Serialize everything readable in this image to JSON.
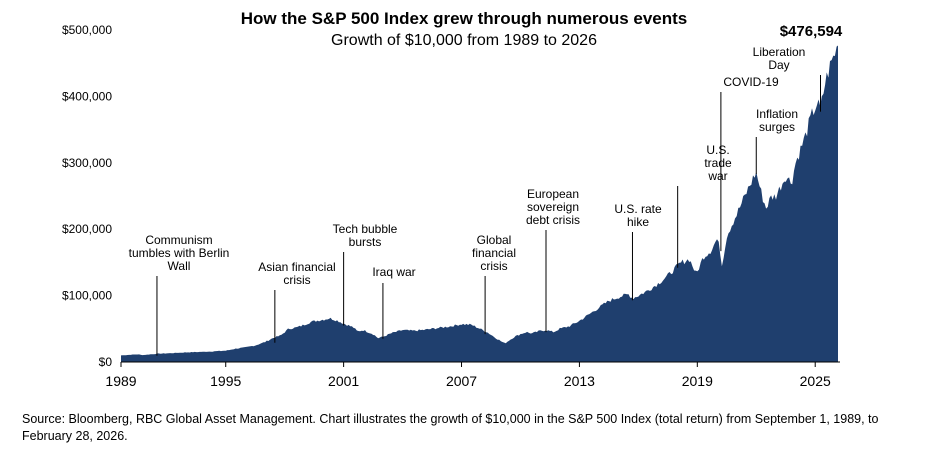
{
  "chart_data": {
    "type": "area",
    "title": "How the S&P 500 Index grew through numerous events",
    "subtitle": "Growth of $10,000 from 1989 to 2026",
    "xlabel": "",
    "ylabel": "",
    "xlim": [
      1989.67,
      2026.16
    ],
    "ylim": [
      0,
      500000
    ],
    "grid": false,
    "legend": "none",
    "color": "#1f3f6e",
    "y_ticks": [
      0,
      100000,
      200000,
      300000,
      400000,
      500000
    ],
    "y_tick_labels": [
      "$0",
      "$100,000",
      "$200,000",
      "$300,000",
      "$400,000",
      "$500,000"
    ],
    "x_ticks": [
      1989,
      1995,
      2001,
      2007,
      2013,
      2019,
      2025
    ],
    "x_tick_labels": [
      "1989",
      "1995",
      "2001",
      "2007",
      "2013",
      "2019",
      "2025"
    ],
    "final_value_label": "$476,594",
    "series": [
      {
        "x": [
          1989.67,
          1990.5,
          1990.8,
          1991.5,
          1992.0,
          1993.0,
          1994.0,
          1995.0,
          1995.5,
          1996.0,
          1996.5,
          1997.0,
          1997.4,
          1997.8,
          1998.2,
          1998.6,
          1998.9,
          1999.3,
          1999.6,
          2000.0,
          2000.3,
          2000.7,
          2001.0,
          2001.5,
          2001.7,
          2002.0,
          2002.5,
          2002.75,
          2003.0,
          2003.5,
          2004.0,
          2004.5,
          2005.0,
          2005.5,
          2006.0,
          2006.5,
          2007.0,
          2007.5,
          2007.8,
          2008.3,
          2008.8,
          2009.2,
          2009.7,
          2010.0,
          2010.3,
          2010.6,
          2011.0,
          2011.3,
          2011.7,
          2012.0,
          2012.5,
          2013.0,
          2013.5,
          2014.0,
          2014.5,
          2015.0,
          2015.5,
          2015.7,
          2016.0,
          2016.5,
          2017.0,
          2017.5,
          2018.0,
          2018.2,
          2018.6,
          2018.95,
          2019.3,
          2019.7,
          2020.0,
          2020.15,
          2020.25,
          2020.5,
          2020.8,
          2021.0,
          2021.5,
          2021.99,
          2022.3,
          2022.5,
          2022.75,
          2023.0,
          2023.5,
          2023.8,
          2024.0,
          2024.5,
          2024.8,
          2025.1,
          2025.27,
          2025.5,
          2025.8,
          2026.0,
          2026.16
        ],
        "y": [
          10000,
          11500,
          10500,
          12500,
          13000,
          14500,
          15500,
          17000,
          20000,
          22000,
          25000,
          30000,
          36000,
          40000,
          50000,
          52000,
          55000,
          60000,
          62000,
          64000,
          66000,
          62000,
          58000,
          52000,
          46000,
          48000,
          42000,
          36000,
          38000,
          44000,
          48000,
          47000,
          48000,
          50000,
          52000,
          54000,
          57000,
          56000,
          52000,
          45000,
          35000,
          28000,
          38000,
          42000,
          45000,
          43000,
          47000,
          48000,
          45000,
          50000,
          54000,
          62000,
          72000,
          82000,
          92000,
          98000,
          102000,
          96000,
          100000,
          108000,
          118000,
          130000,
          145000,
          150000,
          155000,
          132000,
          158000,
          168000,
          185000,
          170000,
          145000,
          190000,
          210000,
          222000,
          255000,
          286000,
          250000,
          232000,
          248000,
          250000,
          280000,
          270000,
          300000,
          340000,
          370000,
          390000,
          380000,
          420000,
          450000,
          465000,
          476594
        ]
      }
    ],
    "annotations": [
      {
        "text": [
          "Communism",
          "tumbles with Berlin",
          "Wall"
        ],
        "x": 1991.5,
        "y": 12500
      },
      {
        "text": [
          "Asian financial",
          "crisis"
        ],
        "x": 1997.5,
        "y": 32000
      },
      {
        "text": [
          "Tech bubble",
          "bursts"
        ],
        "x": 2001.0,
        "y": 58000
      },
      {
        "text": [
          "Iraq war"
        ],
        "x": 2003.0,
        "y": 38000
      },
      {
        "text": [
          "Global",
          "financial",
          "crisis"
        ],
        "x": 2008.2,
        "y": 45000
      },
      {
        "text": [
          "European",
          "sovereign",
          "debt crisis"
        ],
        "x": 2011.3,
        "y": 48000
      },
      {
        "text": [
          "U.S. rate",
          "hike"
        ],
        "x": 2015.7,
        "y": 96000
      },
      {
        "text": [
          "U.S.",
          "trade",
          "war"
        ],
        "x": 2018.0,
        "y": 145000
      },
      {
        "text": [
          "COVID-19"
        ],
        "x": 2020.2,
        "y": 170000
      },
      {
        "text": [
          "Inflation",
          "surges"
        ],
        "x": 2022.0,
        "y": 286000
      },
      {
        "text": [
          "Liberation",
          "Day"
        ],
        "x": 2025.27,
        "y": 380000
      }
    ]
  },
  "source_text": "Source: Bloomberg, RBC Global Asset Management. Chart illustrates the growth of $10,000 in the S&P 500 Index (total return) from September 1, 1989, to February 28, 2026."
}
